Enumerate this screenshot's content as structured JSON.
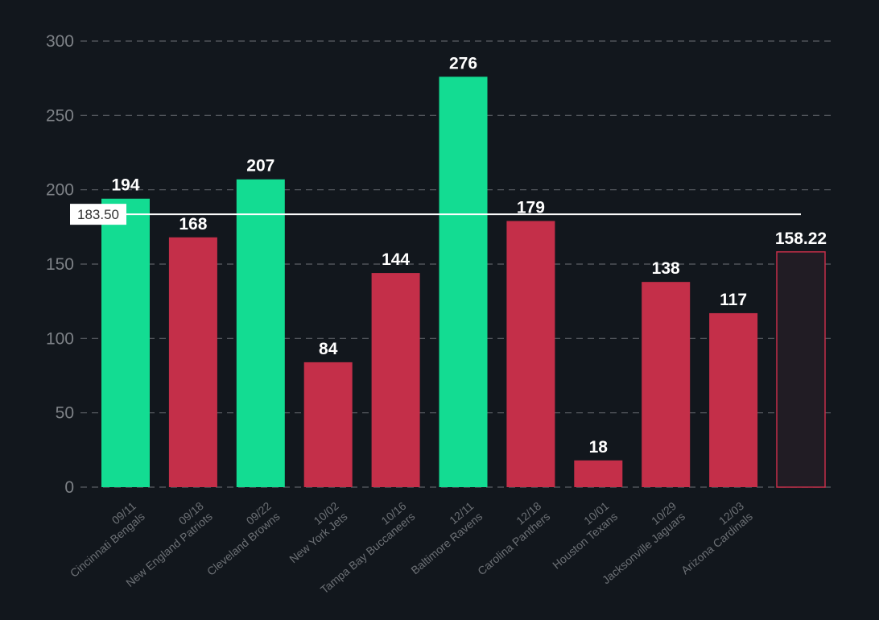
{
  "chart_data": {
    "type": "bar",
    "ylim": [
      0,
      300
    ],
    "yticks": [
      "0",
      "50",
      "100",
      "150",
      "200",
      "250",
      "300"
    ],
    "grid": true,
    "bars": [
      {
        "date": "09/11",
        "team": "Cincinnati Bengals",
        "value": 194,
        "label": "194",
        "color": "#13dc92"
      },
      {
        "date": "09/18",
        "team": "New England Patriots",
        "value": 168,
        "label": "168",
        "color": "#c42f49"
      },
      {
        "date": "09/22",
        "team": "Cleveland Browns",
        "value": 207,
        "label": "207",
        "color": "#13dc92"
      },
      {
        "date": "10/02",
        "team": "New York Jets",
        "value": 84,
        "label": "84",
        "color": "#c42f49"
      },
      {
        "date": "10/16",
        "team": "Tampa Bay Buccaneers",
        "value": 144,
        "label": "144",
        "color": "#c42f49"
      },
      {
        "date": "12/11",
        "team": "Baltimore Ravens",
        "value": 276,
        "label": "276",
        "color": "#13dc92"
      },
      {
        "date": "12/18",
        "team": "Carolina Panthers",
        "value": 179,
        "label": "179",
        "color": "#c42f49"
      },
      {
        "date": "10/01",
        "team": "Houston Texans",
        "value": 18,
        "label": "18",
        "color": "#c42f49"
      },
      {
        "date": "10/29",
        "team": "Jacksonville Jaguars",
        "value": 138,
        "label": "138",
        "color": "#c42f49"
      },
      {
        "date": "12/03",
        "team": "Arizona Cardinals",
        "value": 117,
        "label": "117",
        "color": "#c42f49"
      },
      {
        "date": "",
        "team": "",
        "value": 158.22,
        "label": "158.22",
        "color": "#211c24",
        "outline": "#c42f49"
      }
    ],
    "reference_line": {
      "value": 183.5,
      "label": "183.50",
      "color": "#ffffff"
    }
  }
}
